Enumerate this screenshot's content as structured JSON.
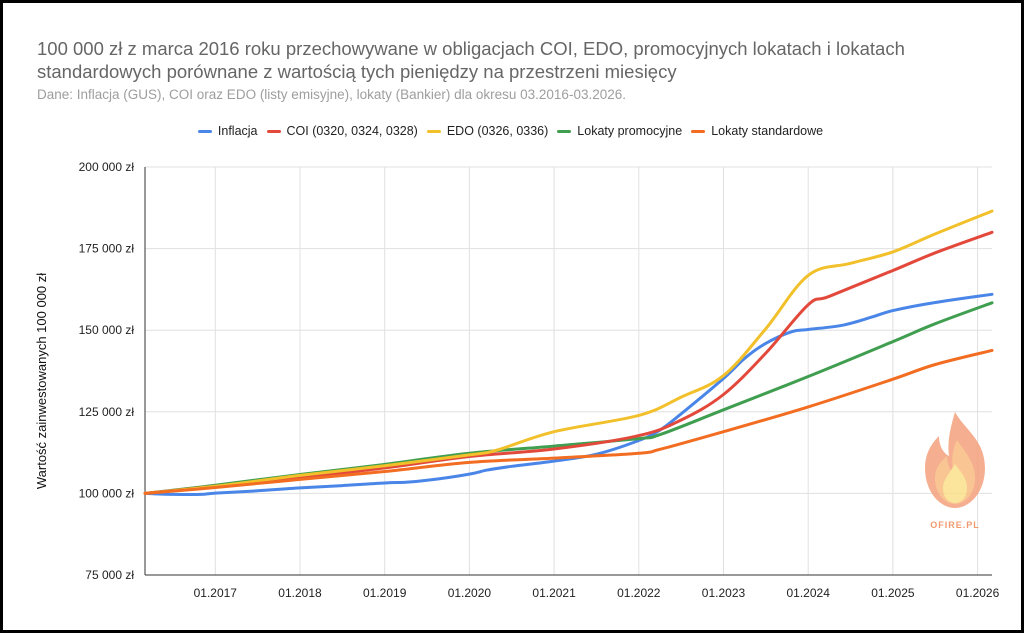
{
  "chart_data": {
    "type": "line",
    "title": "100 000 zł z marca 2016 roku przechowywane w obligacjach COI, EDO, promocyjnych lokatach i lokatach standardowych porównane z wartością tych pieniędzy na przestrzeni miesięcy",
    "subtitle": "Dane: Inflacja (GUS), COI oraz EDO (listy emisyjne), lokaty (Bankier) dla okresu 03.2016-03.2026.",
    "ylabel": "Wartość zainwestowanych 100 000 zł",
    "xlabel": "",
    "ylim": [
      75000,
      200000
    ],
    "xlim": [
      2016.17,
      2026.17
    ],
    "grid": true,
    "legend_position": "top",
    "y_ticks": [
      {
        "value": 75000,
        "label": "75 000 zł"
      },
      {
        "value": 100000,
        "label": "100 000 zł"
      },
      {
        "value": 125000,
        "label": "125 000 zł"
      },
      {
        "value": 150000,
        "label": "150 000 zł"
      },
      {
        "value": 175000,
        "label": "175 000 zł"
      },
      {
        "value": 200000,
        "label": "200 000 zł"
      }
    ],
    "x_ticks": [
      {
        "value": 2017.0,
        "label": "01.2017"
      },
      {
        "value": 2018.0,
        "label": "01.2018"
      },
      {
        "value": 2019.0,
        "label": "01.2019"
      },
      {
        "value": 2020.0,
        "label": "01.2020"
      },
      {
        "value": 2021.0,
        "label": "01.2021"
      },
      {
        "value": 2022.0,
        "label": "01.2022"
      },
      {
        "value": 2023.0,
        "label": "01.2023"
      },
      {
        "value": 2024.0,
        "label": "01.2024"
      },
      {
        "value": 2025.0,
        "label": "01.2025"
      },
      {
        "value": 2026.0,
        "label": "01.2026"
      }
    ],
    "series": [
      {
        "name": "Inflacja",
        "color": "#4a86e8",
        "points": [
          [
            2016.17,
            100000
          ],
          [
            2016.5,
            99700
          ],
          [
            2016.83,
            99700
          ],
          [
            2017.0,
            100100
          ],
          [
            2017.5,
            100800
          ],
          [
            2018.0,
            101700
          ],
          [
            2018.5,
            102400
          ],
          [
            2019.0,
            103200
          ],
          [
            2019.25,
            103400
          ],
          [
            2019.5,
            104000
          ],
          [
            2020.0,
            105900
          ],
          [
            2020.2,
            107100
          ],
          [
            2020.5,
            108300
          ],
          [
            2021.0,
            109900
          ],
          [
            2021.5,
            112000
          ],
          [
            2022.0,
            116200
          ],
          [
            2022.25,
            119400
          ],
          [
            2022.5,
            124400
          ],
          [
            2023.0,
            135200
          ],
          [
            2023.25,
            141400
          ],
          [
            2023.5,
            146000
          ],
          [
            2023.8,
            149500
          ],
          [
            2024.0,
            150200
          ],
          [
            2024.4,
            151500
          ],
          [
            2024.75,
            154000
          ],
          [
            2025.0,
            156000
          ],
          [
            2025.5,
            158500
          ],
          [
            2026.17,
            161000
          ]
        ]
      },
      {
        "name": "COI (0320, 0324, 0328)",
        "color": "#e3493b",
        "points": [
          [
            2016.17,
            100000
          ],
          [
            2017.0,
            102200
          ],
          [
            2018.0,
            104800
          ],
          [
            2019.0,
            107800
          ],
          [
            2020.0,
            111300
          ],
          [
            2021.0,
            113600
          ],
          [
            2022.0,
            117700
          ],
          [
            2022.5,
            122500
          ],
          [
            2023.0,
            130300
          ],
          [
            2023.5,
            143000
          ],
          [
            2024.0,
            157800
          ],
          [
            2024.25,
            160400
          ],
          [
            2025.0,
            168300
          ],
          [
            2025.5,
            173700
          ],
          [
            2026.17,
            180000
          ]
        ]
      },
      {
        "name": "EDO (0326, 0336)",
        "color": "#f2c02b",
        "points": [
          [
            2016.17,
            100000
          ],
          [
            2017.0,
            102200
          ],
          [
            2018.0,
            105500
          ],
          [
            2019.0,
            108500
          ],
          [
            2020.0,
            111800
          ],
          [
            2020.33,
            113300
          ],
          [
            2021.0,
            118900
          ],
          [
            2022.0,
            123900
          ],
          [
            2022.5,
            129500
          ],
          [
            2023.0,
            136100
          ],
          [
            2023.5,
            150500
          ],
          [
            2024.0,
            166800
          ],
          [
            2024.5,
            170500
          ],
          [
            2025.0,
            174000
          ],
          [
            2025.5,
            179500
          ],
          [
            2026.17,
            186500
          ]
        ]
      },
      {
        "name": "Lokaty promocyjne",
        "color": "#3f9e4f",
        "points": [
          [
            2016.17,
            100000
          ],
          [
            2017.0,
            102500
          ],
          [
            2018.0,
            105800
          ],
          [
            2019.0,
            108900
          ],
          [
            2020.0,
            112300
          ],
          [
            2021.0,
            114500
          ],
          [
            2022.0,
            116800
          ],
          [
            2022.25,
            118000
          ],
          [
            2023.0,
            125600
          ],
          [
            2024.0,
            135800
          ],
          [
            2025.0,
            146500
          ],
          [
            2025.5,
            152000
          ],
          [
            2026.17,
            158400
          ]
        ]
      },
      {
        "name": "Lokaty standardowe",
        "color": "#f26d21",
        "points": [
          [
            2016.17,
            100000
          ],
          [
            2017.0,
            101800
          ],
          [
            2018.0,
            104300
          ],
          [
            2019.0,
            106700
          ],
          [
            2020.0,
            109500
          ],
          [
            2021.0,
            110800
          ],
          [
            2022.0,
            112300
          ],
          [
            2022.25,
            113500
          ],
          [
            2023.0,
            118900
          ],
          [
            2024.0,
            126500
          ],
          [
            2025.0,
            135000
          ],
          [
            2025.5,
            139500
          ],
          [
            2026.17,
            143800
          ]
        ]
      }
    ]
  },
  "watermark": {
    "text": "OFIRE.PL",
    "flame_colors": [
      "#f4a07c",
      "#f8bc80",
      "#fbe08a"
    ]
  }
}
